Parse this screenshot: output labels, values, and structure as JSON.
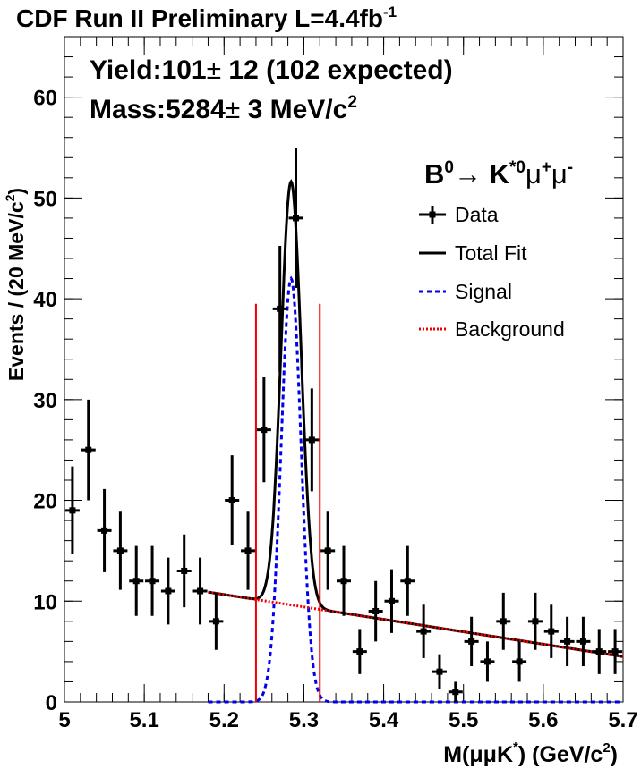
{
  "chart_data": {
    "type": "scatter",
    "title": {
      "main": "CDF Run II Preliminary L=4.4fb",
      "sup": "-1"
    },
    "annotations": {
      "yield": {
        "label": "Yield:101",
        "pm": "±",
        "rest": " 12 (102 expected)"
      },
      "mass": {
        "label": "Mass:5284",
        "pm": "±",
        "rest": " 3 MeV/c",
        "sup": "2"
      },
      "decay": {
        "b": "B",
        "b_sup": "0",
        "arrow": "→ K",
        "k_sup": "*0",
        "mu": "μ",
        "mu_plus": "+",
        "mu2": "μ",
        "mu_minus": "-"
      }
    },
    "xlabel": {
      "pre": "M(μμK",
      "star": "*",
      "post": ") (GeV/c",
      "sup": "2",
      "close": ")"
    },
    "ylabel": {
      "pre": "Events / (20 MeV/c",
      "sup": "2",
      "close": ")"
    },
    "xlim": [
      5.0,
      5.7
    ],
    "ylim": [
      0,
      66
    ],
    "x_ticks": [
      5.0,
      5.1,
      5.2,
      5.3,
      5.4,
      5.5,
      5.6,
      5.7
    ],
    "x_tick_labels": [
      "5",
      "5.1",
      "5.2",
      "5.3",
      "5.4",
      "5.5",
      "5.6",
      "5.7"
    ],
    "y_ticks": [
      0,
      10,
      20,
      30,
      40,
      50,
      60
    ],
    "y_tick_labels": [
      "0",
      "10",
      "20",
      "30",
      "40",
      "50",
      "60"
    ],
    "legend": {
      "position": "top-right",
      "entries": [
        {
          "label": "Data",
          "style": "data"
        },
        {
          "label": "Total Fit",
          "style": "fit"
        },
        {
          "label": "Signal",
          "style": "signal"
        },
        {
          "label": "Background",
          "style": "background"
        }
      ]
    },
    "colors": {
      "data": "#000000",
      "fit": "#000000",
      "signal": "#0000ee",
      "background": "#ee0000",
      "window": "#ee0000"
    },
    "signal_window": [
      5.24,
      5.32
    ],
    "data": [
      {
        "x": 5.01,
        "y": 19
      },
      {
        "x": 5.03,
        "y": 25
      },
      {
        "x": 5.05,
        "y": 17
      },
      {
        "x": 5.07,
        "y": 15
      },
      {
        "x": 5.09,
        "y": 12
      },
      {
        "x": 5.11,
        "y": 12
      },
      {
        "x": 5.13,
        "y": 11
      },
      {
        "x": 5.15,
        "y": 13
      },
      {
        "x": 5.17,
        "y": 11
      },
      {
        "x": 5.19,
        "y": 8
      },
      {
        "x": 5.21,
        "y": 20
      },
      {
        "x": 5.23,
        "y": 15
      },
      {
        "x": 5.25,
        "y": 27
      },
      {
        "x": 5.27,
        "y": 39
      },
      {
        "x": 5.29,
        "y": 48
      },
      {
        "x": 5.31,
        "y": 26
      },
      {
        "x": 5.33,
        "y": 15
      },
      {
        "x": 5.35,
        "y": 12
      },
      {
        "x": 5.37,
        "y": 5
      },
      {
        "x": 5.39,
        "y": 9
      },
      {
        "x": 5.41,
        "y": 10
      },
      {
        "x": 5.43,
        "y": 12
      },
      {
        "x": 5.45,
        "y": 7
      },
      {
        "x": 5.47,
        "y": 3
      },
      {
        "x": 5.49,
        "y": 1
      },
      {
        "x": 5.51,
        "y": 6
      },
      {
        "x": 5.53,
        "y": 4
      },
      {
        "x": 5.55,
        "y": 8
      },
      {
        "x": 5.57,
        "y": 4
      },
      {
        "x": 5.59,
        "y": 8
      },
      {
        "x": 5.61,
        "y": 7
      },
      {
        "x": 5.63,
        "y": 6
      },
      {
        "x": 5.65,
        "y": 6
      },
      {
        "x": 5.67,
        "y": 5
      },
      {
        "x": 5.69,
        "y": 5
      }
    ],
    "model": {
      "fit_range": [
        5.18,
        5.7
      ],
      "background_line": {
        "x0": 5.18,
        "y0": 10.9,
        "x1": 5.7,
        "y1": 4.5
      },
      "signal_gaussian": {
        "mean": 5.284,
        "sigma": 0.0125,
        "peak": 42
      }
    }
  }
}
